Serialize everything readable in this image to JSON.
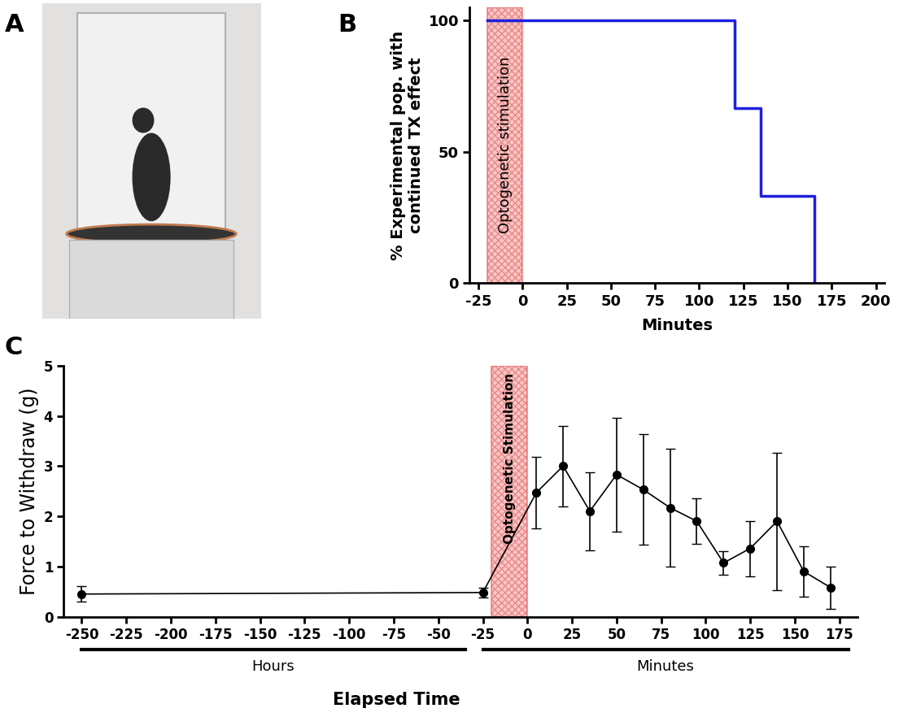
{
  "chart_data": [
    {
      "type": "image",
      "panel_label": "A"
    },
    {
      "type": "line",
      "panel_label": "B",
      "x": [
        -20,
        120,
        135,
        165
      ],
      "values": [
        100,
        66.7,
        33.3,
        0
      ],
      "color": "#1f1fe0",
      "line_style": "steps",
      "xlabel": "Minutes",
      "ylabel": "% Experimental pop. with\ncontinued TX effect",
      "xlim": [
        -30,
        205
      ],
      "xticks": [
        -25,
        0,
        25,
        50,
        75,
        100,
        125,
        150,
        175,
        200
      ],
      "ylim": [
        0,
        105
      ],
      "yticks": [
        0,
        50,
        100
      ],
      "shaded_region": {
        "label": "Optogenetic stimulation",
        "range": [
          -20,
          0
        ],
        "color": "#f4a3a3"
      }
    },
    {
      "type": "line",
      "panel_label": "C",
      "x": [
        -250,
        -25,
        5,
        20,
        35,
        50,
        65,
        80,
        95,
        110,
        125,
        140,
        155,
        170
      ],
      "values": [
        0.45,
        0.48,
        2.47,
        3.0,
        2.1,
        2.83,
        2.53,
        2.17,
        1.9,
        1.07,
        1.36,
        1.9,
        0.9,
        0.58
      ],
      "errors": [
        0.15,
        0.1,
        0.72,
        0.8,
        0.78,
        1.13,
        1.1,
        1.17,
        0.45,
        0.23,
        0.55,
        1.37,
        0.5,
        0.42
      ],
      "color": "#000000",
      "marker": "o",
      "xlabel": "Elapsed Time",
      "ylabel": "Force to Withdraw (g)",
      "xlim": [
        -260,
        185
      ],
      "xticks": [
        -250,
        -225,
        -200,
        -175,
        -150,
        -125,
        -100,
        -75,
        -50,
        -25,
        0,
        25,
        50,
        75,
        100,
        125,
        150,
        175
      ],
      "ylim": [
        0,
        5
      ],
      "yticks": [
        0,
        1,
        2,
        3,
        4,
        5
      ],
      "shaded_region": {
        "label": "Optogenetic Stimulation",
        "range": [
          -20,
          0
        ],
        "color": "#f4a3a3"
      },
      "axis_segments": [
        {
          "label": "Hours",
          "range": [
            -250,
            -35
          ]
        },
        {
          "label": "Minutes",
          "range": [
            -25,
            180
          ]
        }
      ]
    }
  ]
}
